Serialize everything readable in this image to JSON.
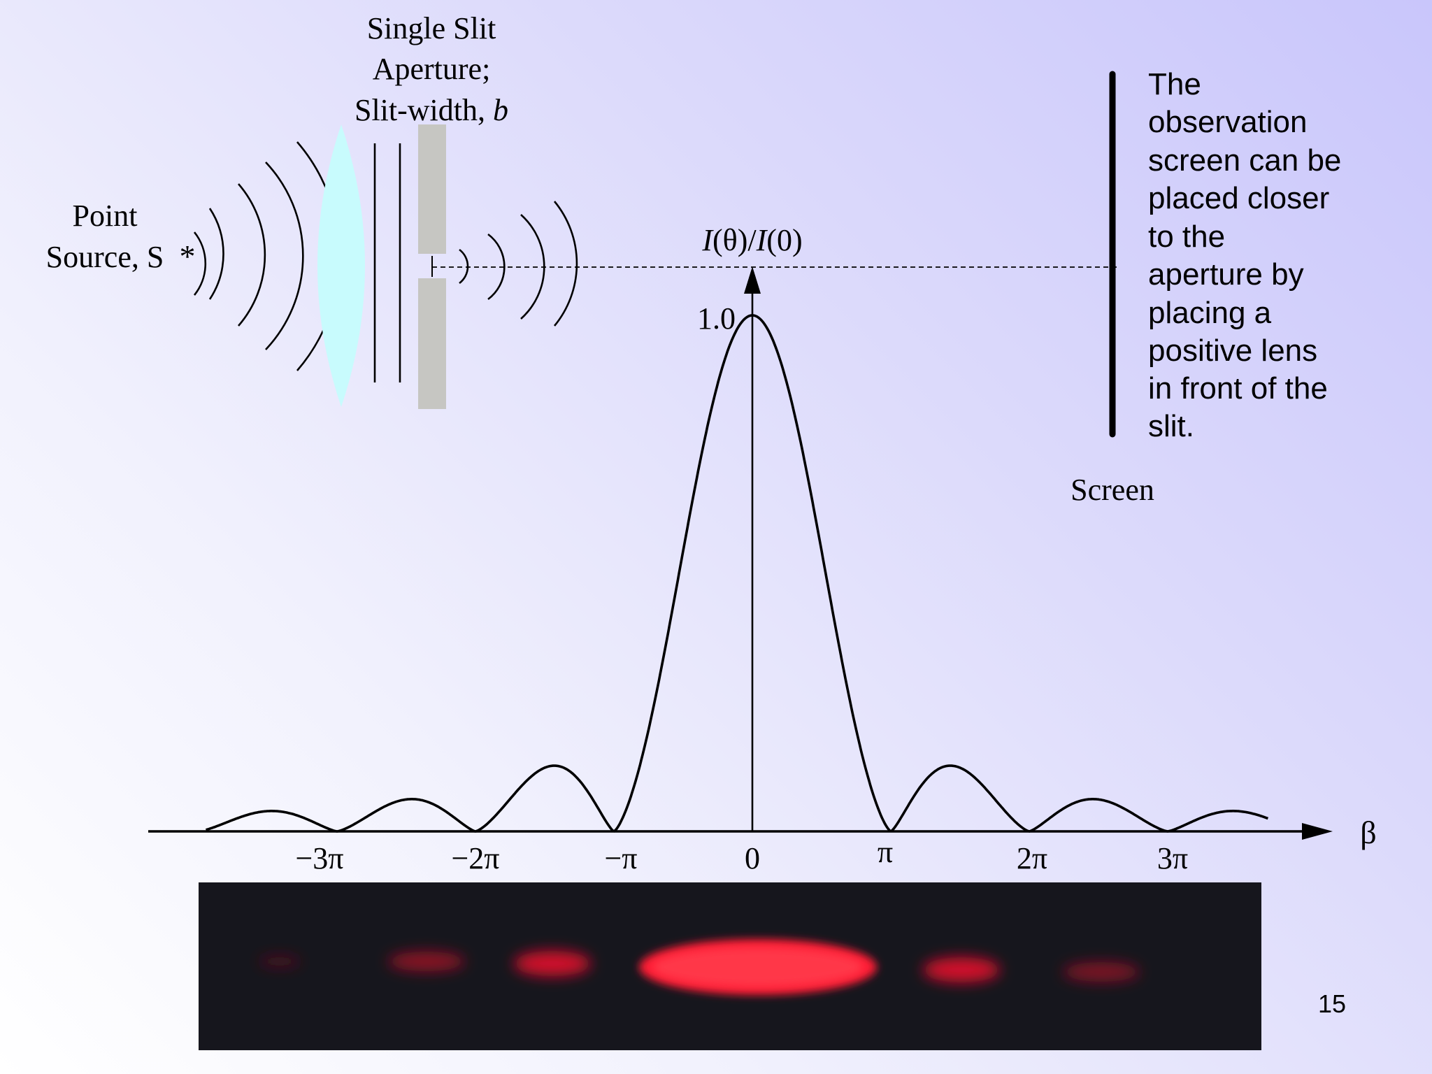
{
  "labels": {
    "slit_title": [
      "Single Slit",
      "Aperture;",
      "Slit-width, "
    ],
    "slit_width_symbol": "b",
    "point_source": [
      "Point",
      "Source, S"
    ],
    "point_source_marker": "*",
    "intensity_axis": {
      "I1": "I",
      "mid": "(θ)/",
      "I2": "I",
      "end": "(0)"
    },
    "peak_value": "1.0",
    "beta_symbol": "β",
    "screen_label": "Screen",
    "note_lines": [
      "The",
      "observation",
      "screen can be",
      "placed closer",
      "to the",
      "aperture by",
      "placing a",
      "positive lens",
      "in front of the",
      "slit."
    ],
    "page_number": "15"
  },
  "chart_data": {
    "type": "line",
    "function": "(sin β / β)^2",
    "x_range": [
      -12.4,
      11.7
    ],
    "ylim": [
      0,
      1.0
    ],
    "x_ticks": [
      "−3π",
      "−2π",
      "−π",
      "0",
      "π",
      "2π",
      "3π"
    ],
    "peak": 1.0,
    "xlabel": "β",
    "ylabel": "I(θ)/I(0)"
  },
  "colors": {
    "lens": "#c8fbfd",
    "slit_plate": "#c6c6c2",
    "photo_bg": "#16161d",
    "fringe": "#ff2035"
  }
}
